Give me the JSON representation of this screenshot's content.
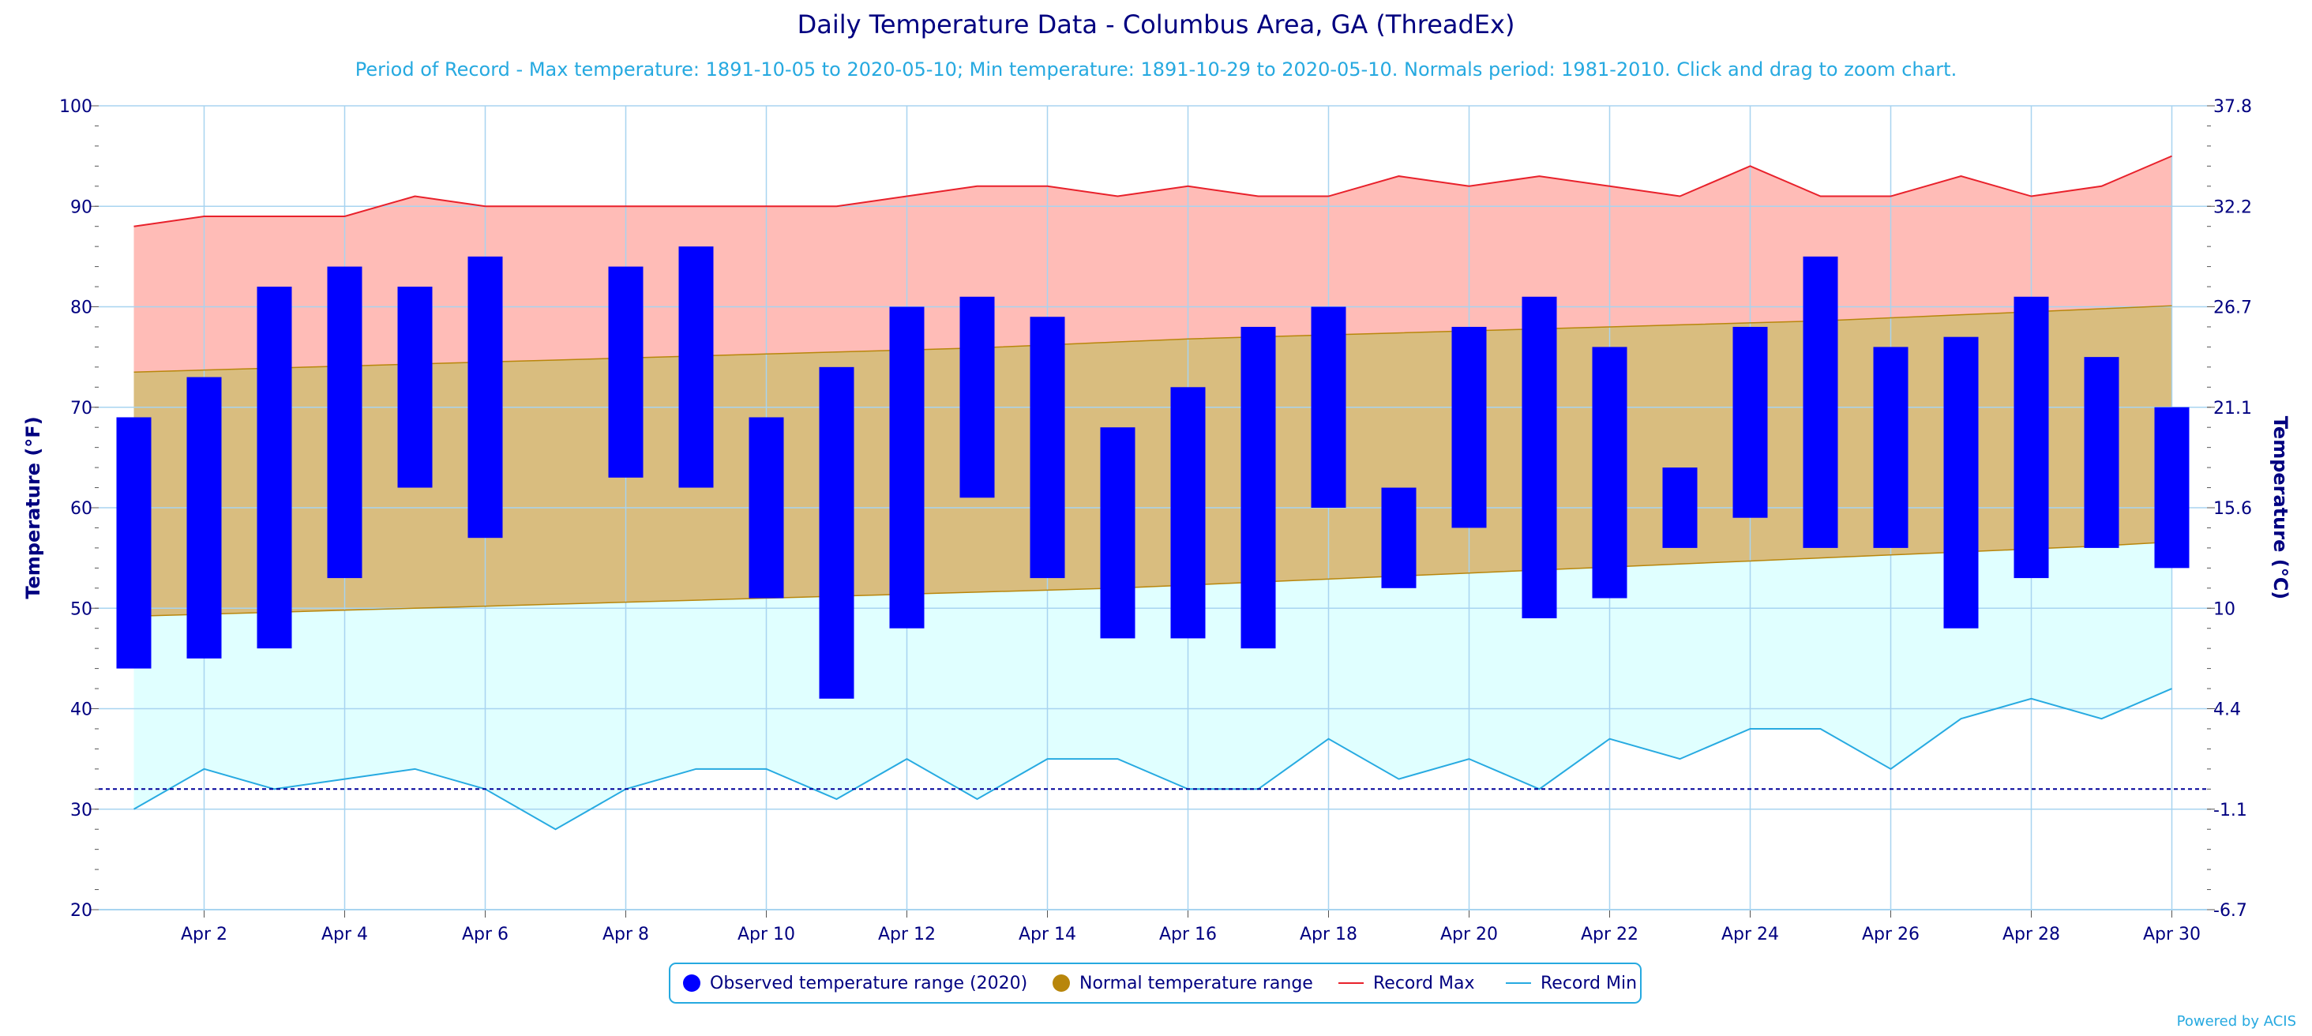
{
  "header": {
    "title": "Daily Temperature Data - Columbus Area, GA (ThreadEx)",
    "subtitle": "Period of Record - Max temperature: 1891-10-05 to 2020-05-10; Min temperature: 1891-10-29 to 2020-05-10. Normals period: 1981-2010. Click and drag to zoom chart."
  },
  "credit": "Powered by ACIS",
  "colors": {
    "observed": "#0000ff",
    "normal_fill": "#d9bd7f",
    "normal_line": "#b8860b",
    "record_max_fill": "#ffbcb7",
    "record_max_line": "#e8212b",
    "record_min_fill": "#e0ffff",
    "record_min_line": "#27aae1",
    "axis_text": "#000080",
    "grid": "#a8d4f0",
    "freezing_line": "#000099"
  },
  "legend": {
    "items": [
      {
        "label": "Observed temperature range (2020)",
        "color": "#0000ff",
        "symbol": "dot"
      },
      {
        "label": "Normal temperature range",
        "color": "#b8860b",
        "symbol": "dot"
      },
      {
        "label": "Record Max",
        "color": "#e8212b",
        "symbol": "line"
      },
      {
        "label": "Record Min",
        "color": "#27aae1",
        "symbol": "line"
      }
    ]
  },
  "chart_data": {
    "type": "bar",
    "x": [
      1,
      2,
      3,
      4,
      5,
      6,
      7,
      8,
      9,
      10,
      11,
      12,
      13,
      14,
      15,
      16,
      17,
      18,
      19,
      20,
      21,
      22,
      23,
      24,
      25,
      26,
      27,
      28,
      29,
      30
    ],
    "x_tick_days": [
      2,
      4,
      6,
      8,
      10,
      12,
      14,
      16,
      18,
      20,
      22,
      24,
      26,
      28,
      30
    ],
    "x_tick_labels": [
      "Apr 2",
      "Apr 4",
      "Apr 6",
      "Apr 8",
      "Apr 10",
      "Apr 12",
      "Apr 14",
      "Apr 16",
      "Apr 18",
      "Apr 20",
      "Apr 22",
      "Apr 24",
      "Apr 26",
      "Apr 28",
      "Apr 30"
    ],
    "xlim": [
      0.5,
      30.5
    ],
    "ylabel": "Temperature (°F)",
    "ylabel_right": "Temperature (°C)",
    "ylim": [
      20,
      100
    ],
    "y_ticks": [
      20,
      30,
      40,
      50,
      60,
      70,
      80,
      90,
      100
    ],
    "y_ticks_right": [
      "-6.7",
      "-1.1",
      "4.4",
      "10",
      "15.6",
      "21.1",
      "26.7",
      "32.2",
      "37.8"
    ],
    "freezing_line": 32,
    "grid": true,
    "legend_position": "bottom-center",
    "series": [
      {
        "name": "Observed temperature range (2020)",
        "kind": "range-bar",
        "low": [
          44,
          45,
          46,
          53,
          62,
          57,
          null,
          63,
          62,
          51,
          41,
          48,
          61,
          53,
          47,
          47,
          46,
          60,
          52,
          58,
          49,
          51,
          56,
          59,
          56,
          56,
          48,
          53,
          56,
          54
        ],
        "high": [
          69,
          73,
          82,
          84,
          82,
          85,
          null,
          84,
          86,
          69,
          74,
          80,
          81,
          79,
          68,
          72,
          78,
          80,
          62,
          78,
          81,
          76,
          64,
          78,
          85,
          76,
          77,
          81,
          75,
          70
        ]
      },
      {
        "name": "Normal temperature range",
        "kind": "area-range",
        "low": [
          49.2,
          49.4,
          49.6,
          49.8,
          50.0,
          50.2,
          50.4,
          50.6,
          50.8,
          51.0,
          51.2,
          51.4,
          51.6,
          51.8,
          52.0,
          52.3,
          52.6,
          52.9,
          53.2,
          53.5,
          53.8,
          54.1,
          54.4,
          54.7,
          55.0,
          55.3,
          55.6,
          55.9,
          56.2,
          56.6
        ],
        "high": [
          73.5,
          73.7,
          73.9,
          74.1,
          74.3,
          74.5,
          74.7,
          74.9,
          75.1,
          75.3,
          75.5,
          75.7,
          75.9,
          76.2,
          76.5,
          76.8,
          77.0,
          77.2,
          77.4,
          77.6,
          77.8,
          78.0,
          78.2,
          78.4,
          78.6,
          78.9,
          79.2,
          79.5,
          79.8,
          80.1
        ]
      },
      {
        "name": "Record Max",
        "kind": "line",
        "values": [
          88,
          89,
          89,
          89,
          91,
          90,
          90,
          90,
          90,
          90,
          90,
          91,
          92,
          92,
          91,
          92,
          91,
          91,
          93,
          92,
          93,
          92,
          91,
          94,
          91,
          91,
          93,
          91,
          92,
          95
        ]
      },
      {
        "name": "Record Min",
        "kind": "line",
        "values": [
          30,
          34,
          32,
          33,
          34,
          32,
          28,
          32,
          34,
          34,
          31,
          35,
          31,
          35,
          35,
          32,
          32,
          37,
          33,
          35,
          32,
          37,
          35,
          38,
          38,
          34,
          39,
          41,
          39,
          42
        ]
      }
    ]
  }
}
